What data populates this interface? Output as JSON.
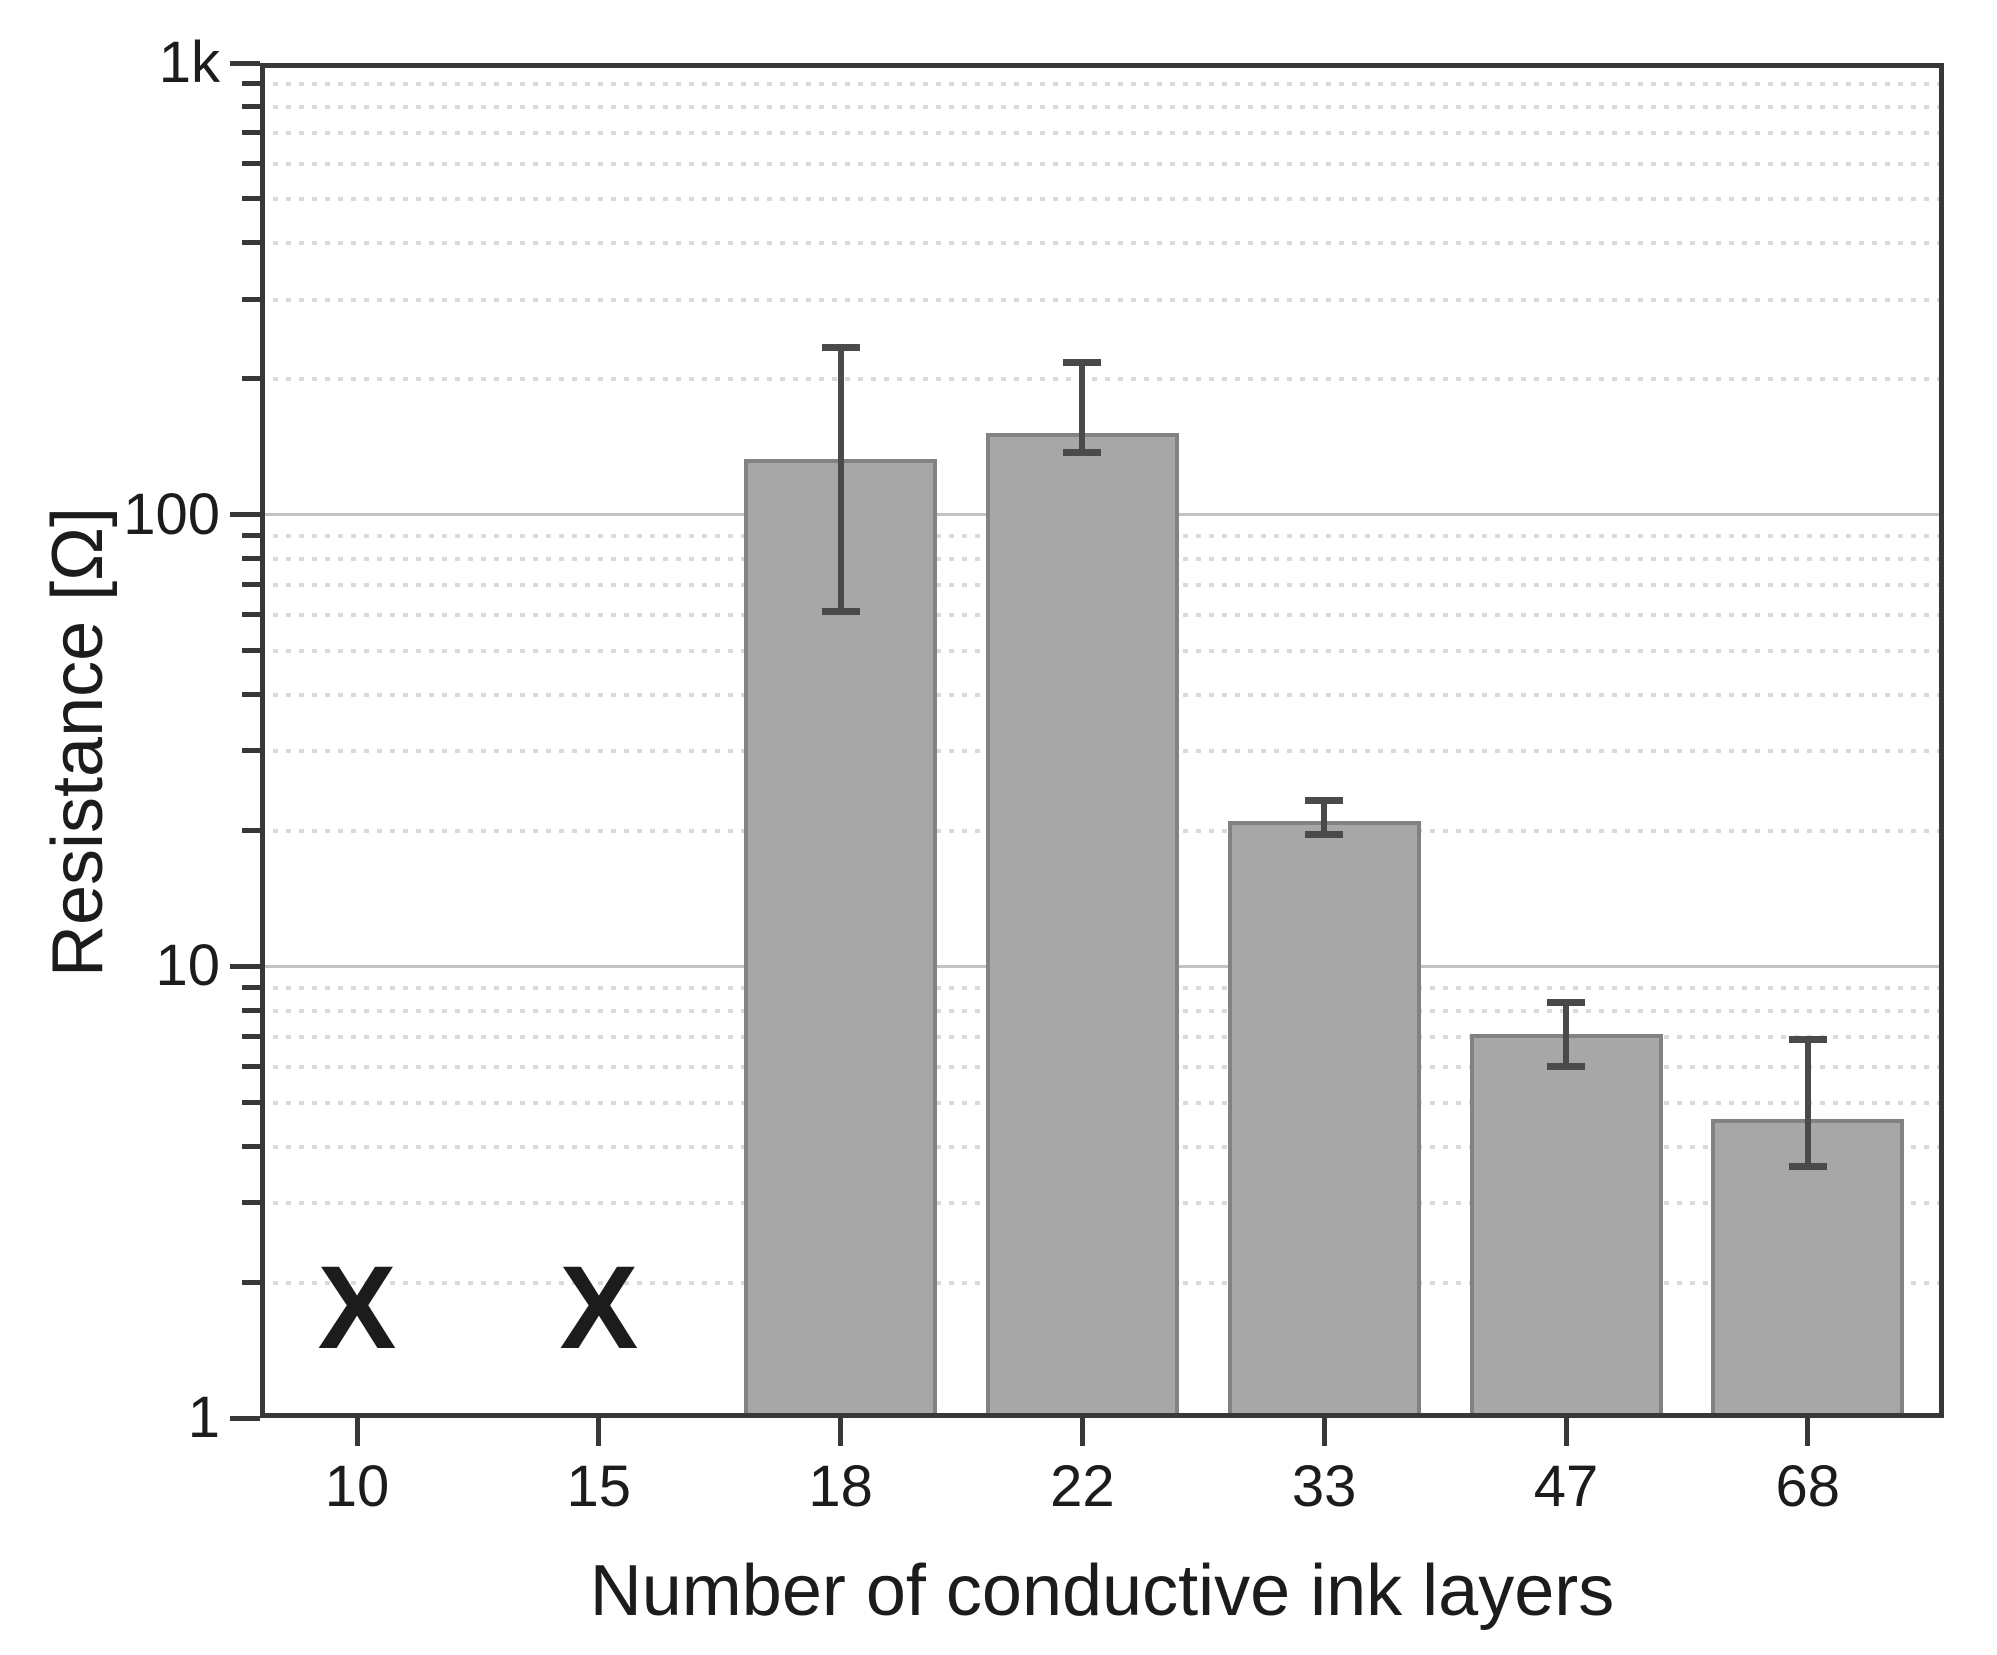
{
  "chart_data": {
    "type": "bar",
    "title": "",
    "xlabel": "Number of conductive ink layers",
    "ylabel": "Resistance [Ω]",
    "y_scale": "log",
    "ylim": [
      1,
      1000
    ],
    "y_ticks": [
      {
        "value": 1,
        "label": "1"
      },
      {
        "value": 10,
        "label": "10"
      },
      {
        "value": 100,
        "label": "100"
      },
      {
        "value": 1000,
        "label": "1k"
      }
    ],
    "grid": {
      "major_solid": true,
      "minor_dotted": true,
      "minor_steps": [
        2,
        3,
        4,
        5,
        6,
        7,
        8,
        9
      ]
    },
    "legend_position": "none",
    "categories": [
      "10",
      "15",
      "18",
      "22",
      "33",
      "47",
      "68"
    ],
    "series": [
      {
        "name": "Resistance",
        "values": [
          null,
          null,
          133,
          152,
          21,
          7.1,
          4.6
        ],
        "error_low": [
          null,
          null,
          61,
          137,
          19.6,
          6.0,
          3.6
        ],
        "error_high": [
          null,
          null,
          235,
          217,
          23.3,
          8.3,
          6.9
        ]
      }
    ],
    "no_data": {
      "marker": "X",
      "categories": [
        "10",
        "15"
      ]
    },
    "colors": {
      "bar_fill": "#a7a7a7",
      "bar_border": "#828282",
      "error_bar": "#4a4a4a",
      "axis": "#383838",
      "grid_major": "#c3c3c3",
      "grid_minor": "#dadada",
      "text": "#1c1c1c"
    }
  }
}
